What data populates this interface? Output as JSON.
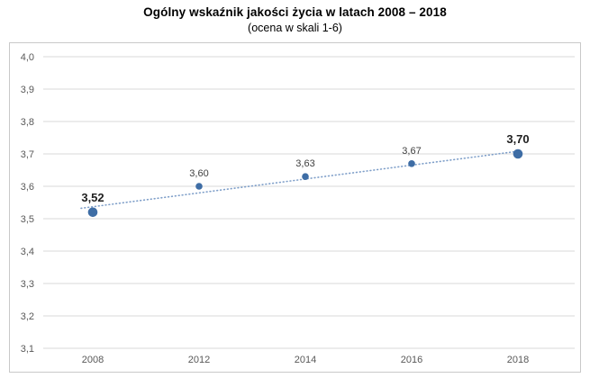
{
  "chart": {
    "title": "Ogólny wskaźnik jakości życia w latach 2008 – 2018",
    "subtitle": "(ocena w skali 1-6)"
  },
  "chart_data": {
    "type": "line",
    "categories": [
      "2008",
      "2012",
      "2014",
      "2016",
      "2018"
    ],
    "values": [
      3.52,
      3.6,
      3.63,
      3.67,
      3.7
    ],
    "point_labels": [
      "3,52",
      "3,60",
      "3,63",
      "3,67",
      "3,70"
    ],
    "emphasized_points": [
      0,
      4
    ],
    "title": "Ogólny wskaźnik jakości życia w latach 2008 – 2018",
    "subtitle": "(ocena w skali 1-6)",
    "xlabel": "",
    "ylabel": "",
    "ylim": [
      3.1,
      4.0
    ],
    "y_tick_values": [
      4.0,
      3.9,
      3.8,
      3.7,
      3.6,
      3.5,
      3.4,
      3.3,
      3.2,
      3.1
    ],
    "y_tick_labels": [
      "4,0",
      "3,9",
      "3,8",
      "3,7",
      "3,6",
      "3,5",
      "3,4",
      "3,3",
      "3,2",
      "3,1"
    ],
    "grid": true,
    "legend": "none",
    "trendline": {
      "style": "dotted",
      "start_value": 3.537,
      "end_value": 3.708
    },
    "colors": {
      "marker": "#3e6da5",
      "trendline": "#7f9fc9",
      "gridline": "#d9d9d9",
      "axis_text": "#595959",
      "data_label": "#404040",
      "data_label_bold": "#1f1f1f",
      "border": "#c9c9c9"
    }
  }
}
